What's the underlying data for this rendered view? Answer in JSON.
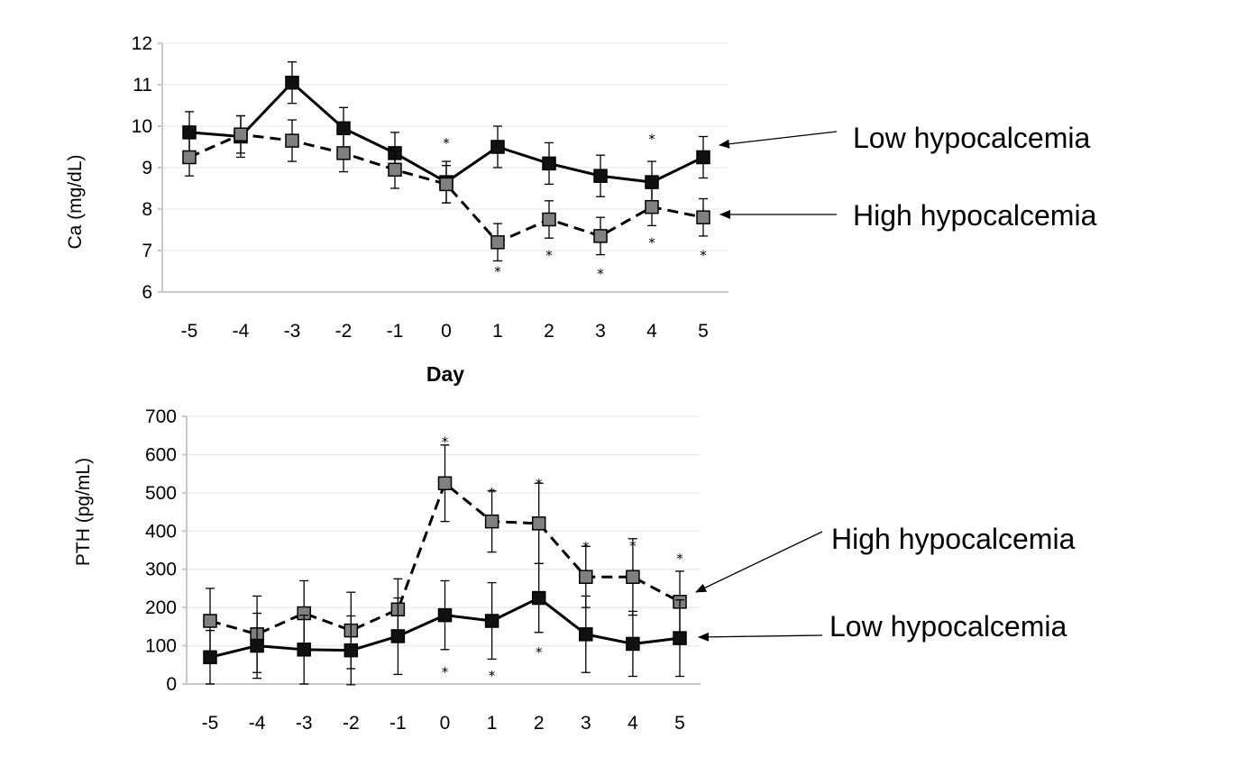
{
  "chart_data": [
    {
      "type": "line",
      "ylabel": "Ca (mg/dL)",
      "xlabel": "Day",
      "x": [
        -5,
        -4,
        -3,
        -2,
        -1,
        0,
        1,
        2,
        3,
        4,
        5
      ],
      "x_tick_labels": [
        "-5",
        "-4",
        "-3",
        "-2",
        "-1",
        "0",
        "1",
        "2",
        "3",
        "4",
        "5"
      ],
      "ylim": [
        6,
        12
      ],
      "y_ticks": [
        6,
        7,
        8,
        9,
        10,
        11,
        12
      ],
      "series": [
        {
          "name": "Low hypocalcemia",
          "color": "#000000",
          "marker_fill": "#111111",
          "line_style": "solid",
          "values": [
            9.85,
            9.75,
            11.05,
            9.95,
            9.35,
            8.65,
            9.5,
            9.1,
            8.8,
            8.65,
            9.25
          ],
          "errors": [
            0.5,
            0.5,
            0.5,
            0.5,
            0.5,
            0.5,
            0.5,
            0.5,
            0.5,
            0.5,
            0.5
          ]
        },
        {
          "name": "High hypocalcemia",
          "color": "#000000",
          "marker_fill": "#808080",
          "line_style": "dashed",
          "values": [
            9.25,
            9.8,
            9.65,
            9.35,
            8.95,
            8.6,
            7.2,
            7.75,
            7.35,
            8.05,
            7.8
          ],
          "errors": [
            0.45,
            0.45,
            0.5,
            0.45,
            0.45,
            0.45,
            0.45,
            0.45,
            0.45,
            0.45,
            0.45
          ]
        }
      ],
      "significance_markers": [
        {
          "x": 0,
          "y": 9.65,
          "text": "*"
        },
        {
          "x": 1,
          "y": 6.55,
          "text": "*"
        },
        {
          "x": 2,
          "y": 6.95,
          "text": "*"
        },
        {
          "x": 3,
          "y": 6.5,
          "text": "*"
        },
        {
          "x": 4,
          "y": 9.75,
          "text": "*"
        },
        {
          "x": 4,
          "y": 7.25,
          "text": "*"
        },
        {
          "x": 5,
          "y": 6.95,
          "text": "*"
        }
      ],
      "annotations": [
        {
          "text": "Low hypocalcemia",
          "points_to": "Low hypocalcemia",
          "at_x": 5
        },
        {
          "text": "High hypocalcemia",
          "points_to": "High hypocalcemia",
          "at_x": 5
        }
      ]
    },
    {
      "type": "line",
      "ylabel": "PTH (pg/mL)",
      "xlabel": "",
      "x": [
        -5,
        -4,
        -3,
        -2,
        -1,
        0,
        1,
        2,
        3,
        4,
        5
      ],
      "x_tick_labels": [
        "-5",
        "-4",
        "-3",
        "-2",
        "-1",
        "0",
        "1",
        "2",
        "3",
        "4",
        "5"
      ],
      "ylim": [
        0,
        700
      ],
      "y_ticks": [
        0,
        100,
        200,
        300,
        400,
        500,
        600,
        700
      ],
      "series": [
        {
          "name": "High hypocalcemia",
          "color": "#000000",
          "marker_fill": "#808080",
          "line_style": "dashed",
          "values": [
            165,
            130,
            185,
            140,
            195,
            525,
            425,
            420,
            280,
            280,
            215
          ],
          "errors": [
            85,
            100,
            85,
            100,
            80,
            100,
            80,
            105,
            80,
            100,
            80
          ]
        },
        {
          "name": "Low hypocalcemia",
          "color": "#000000",
          "marker_fill": "#111111",
          "line_style": "solid",
          "values": [
            70,
            100,
            90,
            88,
            125,
            180,
            165,
            225,
            130,
            105,
            120
          ],
          "errors": [
            70,
            85,
            90,
            90,
            100,
            90,
            100,
            90,
            100,
            85,
            100
          ]
        }
      ],
      "significance_markers": [
        {
          "x": 0,
          "y": 640,
          "text": "*"
        },
        {
          "x": 0,
          "y": 38,
          "text": "*"
        },
        {
          "x": 1,
          "y": 507,
          "text": "*"
        },
        {
          "x": 1,
          "y": 28,
          "text": "*"
        },
        {
          "x": 2,
          "y": 530,
          "text": "*"
        },
        {
          "x": 2,
          "y": 90,
          "text": "*"
        },
        {
          "x": 3,
          "y": 365,
          "text": "*"
        },
        {
          "x": 4,
          "y": 368,
          "text": "*"
        },
        {
          "x": 5,
          "y": 335,
          "text": "*"
        }
      ],
      "annotations": [
        {
          "text": "High hypocalcemia",
          "points_to": "High hypocalcemia",
          "at_x": 5
        },
        {
          "text": "Low hypocalcemia",
          "points_to": "Low hypocalcemia",
          "at_x": 5
        }
      ]
    }
  ]
}
